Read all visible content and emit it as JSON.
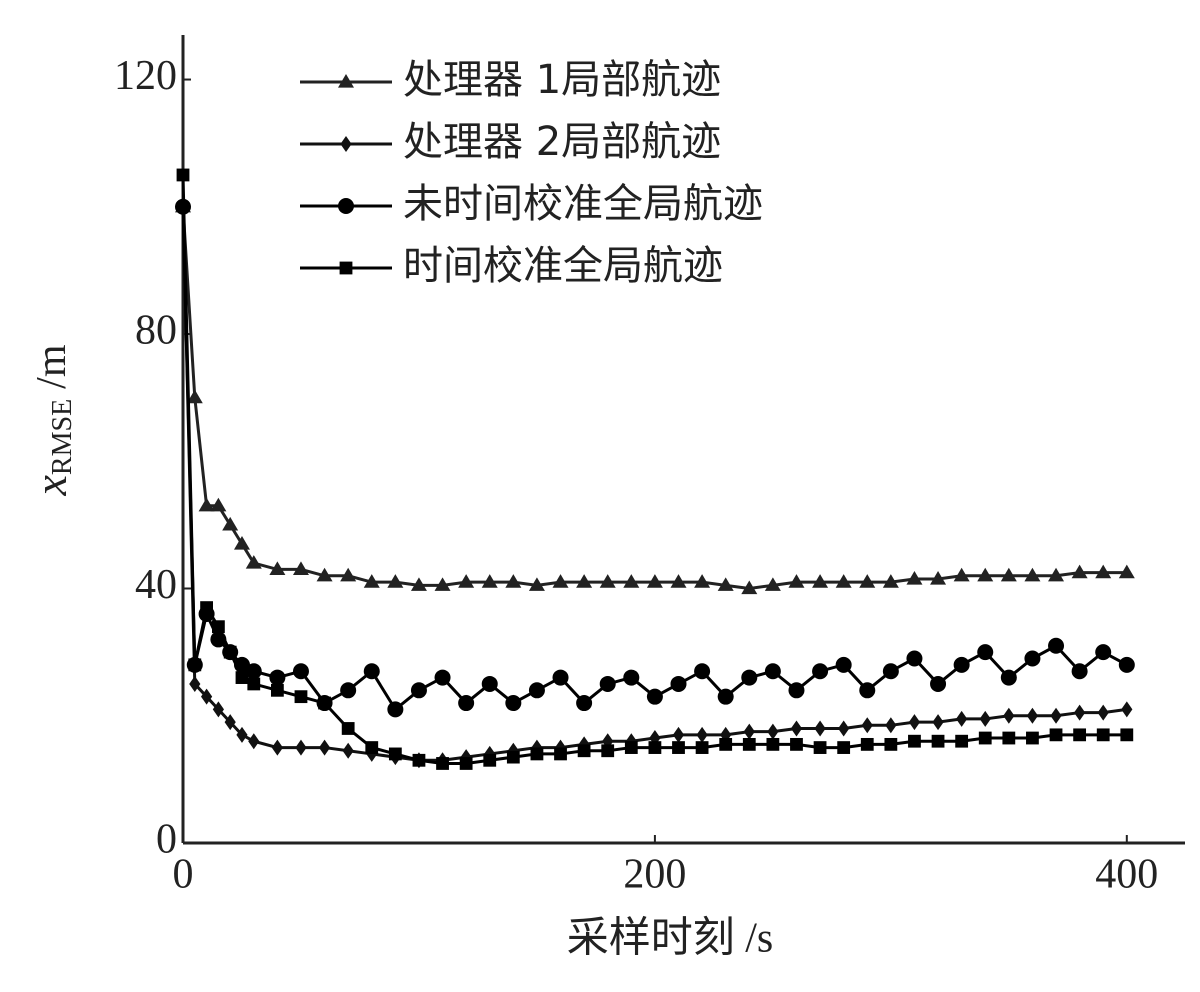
{
  "chart_data": {
    "type": "line",
    "x_label": "采样时刻 /s",
    "y_label": {
      "symbol": "x",
      "subscript": "RMSE",
      "unit": "/m"
    },
    "x": [
      0,
      5,
      10,
      15,
      20,
      25,
      30,
      40,
      50,
      60,
      70,
      80,
      90,
      100,
      110,
      120,
      130,
      140,
      150,
      160,
      170,
      180,
      190,
      200,
      210,
      220,
      230,
      240,
      250,
      260,
      270,
      280,
      290,
      300,
      310,
      320,
      330,
      340,
      350,
      360,
      370,
      380,
      390,
      400
    ],
    "series": [
      {
        "name": "处理器 1局部航迹",
        "color": "#222222",
        "marker": "triangle",
        "values": [
          100,
          70,
          53,
          53,
          50,
          47,
          44,
          43,
          43,
          42,
          42,
          41,
          41,
          40.5,
          40.5,
          41,
          41,
          41,
          40.5,
          41,
          41,
          41,
          41,
          41,
          41,
          41,
          40.5,
          40,
          40.5,
          41,
          41,
          41,
          41,
          41,
          41.5,
          41.5,
          42,
          42,
          42,
          42,
          42,
          42.5,
          42.5,
          42.5
        ]
      },
      {
        "name": "处理器 2局部航迹",
        "color": "#111111",
        "marker": "diamond",
        "values": [
          100,
          25,
          23,
          21,
          19,
          17,
          16,
          15,
          15,
          15,
          14.5,
          14,
          13.5,
          13,
          13,
          13.5,
          14,
          14.5,
          15,
          15,
          15.5,
          16,
          16,
          16.5,
          17,
          17,
          17,
          17.5,
          17.5,
          18,
          18,
          18,
          18.5,
          18.5,
          19,
          19,
          19.5,
          19.5,
          20,
          20,
          20,
          20.5,
          20.5,
          21
        ]
      },
      {
        "name": "未时间校准全局航迹",
        "color": "#000000",
        "marker": "circle",
        "values": [
          100,
          28,
          36,
          32,
          30,
          28,
          27,
          26,
          27,
          22,
          24,
          27,
          21,
          24,
          26,
          22,
          25,
          22,
          24,
          26,
          22,
          25,
          26,
          23,
          25,
          27,
          23,
          26,
          27,
          24,
          27,
          28,
          24,
          27,
          29,
          25,
          28,
          30,
          26,
          29,
          31,
          27,
          30,
          28
        ]
      },
      {
        "name": "时间校准全局航迹",
        "color": "#000000",
        "marker": "square",
        "values": [
          105,
          28,
          37,
          34,
          30,
          26,
          25,
          24,
          23,
          22,
          18,
          15,
          14,
          13,
          12.5,
          12.5,
          13,
          13.5,
          14,
          14,
          14.5,
          14.5,
          15,
          15,
          15,
          15,
          15.5,
          15.5,
          15.5,
          15.5,
          15,
          15,
          15.5,
          15.5,
          16,
          16,
          16,
          16.5,
          16.5,
          16.5,
          17,
          17,
          17,
          17
        ]
      }
    ],
    "xlim": [
      0,
      420
    ],
    "xticks": [
      0,
      200,
      400
    ],
    "ylim": [
      0,
      127
    ],
    "yticks": [
      0,
      40,
      80,
      120
    ]
  }
}
